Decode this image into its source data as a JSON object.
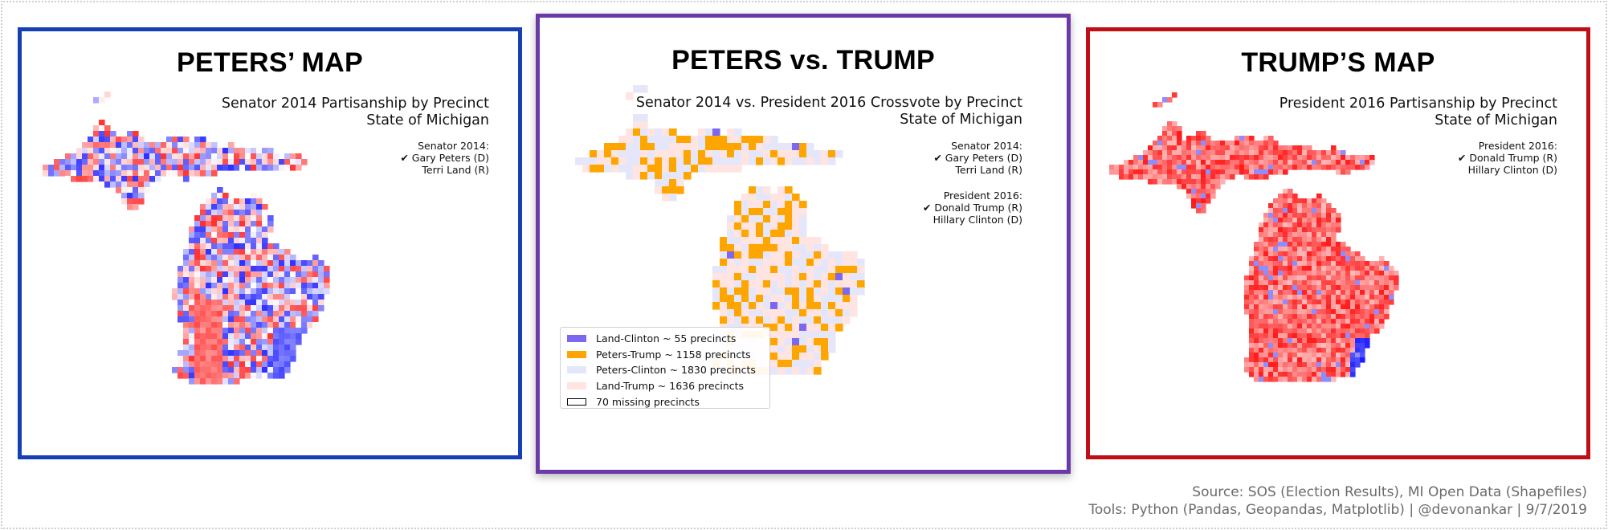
{
  "panels": {
    "left": {
      "title": "PETERS’ MAP",
      "subtitle_line1": "Senator 2014 Partisanship by Precinct",
      "subtitle_line2": "State of Michigan",
      "legend_header": "Senator 2014:",
      "legend_item1": "✔ Gary Peters (D)",
      "legend_item2": "Terri Land (R)",
      "colors": {
        "democrat": "#1a1aff",
        "republican": "#ff1a1a",
        "border": "#1440b3"
      }
    },
    "middle": {
      "title": "PETERS vs. TRUMP",
      "subtitle_line1": "Senator 2014 vs. President 2016 Crossvote by Precinct",
      "subtitle_line2": "State of Michigan",
      "senate_header": "Senator 2014:",
      "senate_item1": "✔ Gary Peters (D)",
      "senate_item2": "Terri Land (R)",
      "pres_header": "President 2016:",
      "pres_item1": "✔ Donald Trump (R)",
      "pres_item2": "Hillary Clinton (D)",
      "legend": [
        {
          "label": "Land-Clinton ~ 55 precincts",
          "color": "#7b68ee"
        },
        {
          "label": "Peters-Trump ~ 1158 precincts",
          "color": "#ffa500"
        },
        {
          "label": "Peters-Clinton ~ 1830 precincts",
          "color": "#e6e6fa"
        },
        {
          "label": "Land-Trump ~ 1636 precincts",
          "color": "#ffe4e1"
        },
        {
          "label": "70 missing precincts",
          "color": "#ffffff"
        }
      ],
      "border_color": "#6b3aa8"
    },
    "right": {
      "title": "TRUMP’S MAP",
      "subtitle_line1": "President 2016 Partisanship by Precinct",
      "subtitle_line2": "State of Michigan",
      "legend_header": "President 2016:",
      "legend_item1": "✔ Donald Trump (R)",
      "legend_item2": "Hillary Clinton (D)",
      "colors": {
        "democrat": "#1a1aff",
        "republican": "#ff1a1a",
        "border": "#c00e16"
      }
    }
  },
  "footer": {
    "line1": "Source: SOS (Election Results), MI Open Data (Shapefiles)",
    "line2": "Tools: Python (Pandas, Geopandas, Matplotlib) | @devonankar | 9/7/2019"
  }
}
